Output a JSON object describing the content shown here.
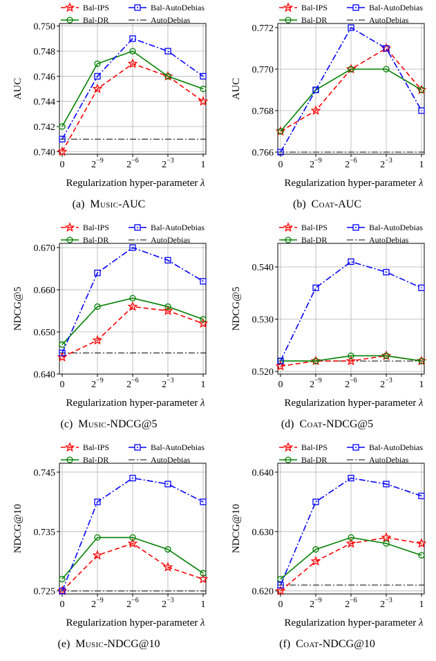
{
  "figure": {
    "captions": [
      {
        "letter": "(a)",
        "dataset": "Music",
        "metric": "-AUC"
      },
      {
        "letter": "(b)",
        "dataset": "Coat",
        "metric": "-AUC"
      },
      {
        "letter": "(c)",
        "dataset": "Music",
        "metric": "-NDCG@5"
      },
      {
        "letter": "(d)",
        "dataset": "Coat",
        "metric": "-NDCG@5"
      },
      {
        "letter": "(e)",
        "dataset": "Music",
        "metric": "-NDCG@10"
      },
      {
        "letter": "(f)",
        "dataset": "Coat",
        "metric": "-NDCG@10"
      }
    ]
  },
  "colors": {
    "bal_ips": "#ff0000",
    "bal_dr": "#008000",
    "bal_autodebias": "#0000ff",
    "autodebias": "#000000"
  },
  "chart_data": [
    {
      "type": "line",
      "xlabel": "Regularization hyper-parameter λ",
      "ylabel": "AUC",
      "categories": [
        "0",
        "2^-9",
        "2^-6",
        "2^-3",
        "1"
      ],
      "ylim": [
        0.7398,
        0.7502
      ],
      "yticks": [
        0.74,
        0.742,
        0.744,
        0.746,
        0.748,
        0.75
      ],
      "ytick_labels": [
        "0.740",
        "0.742",
        "0.744",
        "0.746",
        "0.748",
        "0.750"
      ],
      "legend": "top",
      "grid": true,
      "series": [
        {
          "name": "Bal-IPS",
          "values": [
            0.74,
            0.745,
            0.747,
            0.746,
            0.744
          ]
        },
        {
          "name": "Bal-DR",
          "values": [
            0.742,
            0.747,
            0.748,
            0.746,
            0.745
          ]
        },
        {
          "name": "Bal-AutoDebias",
          "values": [
            0.741,
            0.746,
            0.749,
            0.748,
            0.746
          ]
        },
        {
          "name": "AutoDebias",
          "values": [
            0.741,
            0.741,
            0.741,
            0.741,
            0.741
          ]
        }
      ]
    },
    {
      "type": "line",
      "xlabel": "Regularization hyper-parameter λ",
      "ylabel": "AUC",
      "categories": [
        "0",
        "2^-9",
        "2^-6",
        "2^-3",
        "1"
      ],
      "ylim": [
        0.7659,
        0.7722
      ],
      "yticks": [
        0.766,
        0.768,
        0.77,
        0.772
      ],
      "ytick_labels": [
        "0.766",
        "0.768",
        "0.770",
        "0.772"
      ],
      "legend": "top",
      "grid": true,
      "series": [
        {
          "name": "Bal-IPS",
          "values": [
            0.767,
            0.768,
            0.77,
            0.771,
            0.769
          ]
        },
        {
          "name": "Bal-DR",
          "values": [
            0.767,
            0.769,
            0.77,
            0.77,
            0.769
          ]
        },
        {
          "name": "Bal-AutoDebias",
          "values": [
            0.766,
            0.769,
            0.772,
            0.771,
            0.768
          ]
        },
        {
          "name": "AutoDebias",
          "values": [
            0.766,
            0.766,
            0.766,
            0.766,
            0.766
          ]
        }
      ]
    },
    {
      "type": "line",
      "xlabel": "Regularization hyper-parameter λ",
      "ylabel": "NDCG@5",
      "categories": [
        "0",
        "2^-9",
        "2^-6",
        "2^-3",
        "1"
      ],
      "ylim": [
        0.64,
        0.671
      ],
      "yticks": [
        0.64,
        0.65,
        0.66,
        0.67
      ],
      "ytick_labels": [
        "0.640",
        "0.650",
        "0.660",
        "0.670"
      ],
      "legend": "top",
      "grid": true,
      "series": [
        {
          "name": "Bal-IPS",
          "values": [
            0.644,
            0.648,
            0.656,
            0.655,
            0.652
          ]
        },
        {
          "name": "Bal-DR",
          "values": [
            0.647,
            0.656,
            0.658,
            0.656,
            0.653
          ]
        },
        {
          "name": "Bal-AutoDebias",
          "values": [
            0.645,
            0.664,
            0.67,
            0.667,
            0.662
          ]
        },
        {
          "name": "AutoDebias",
          "values": [
            0.645,
            0.645,
            0.645,
            0.645,
            0.645
          ]
        }
      ]
    },
    {
      "type": "line",
      "xlabel": "Regularization hyper-parameter λ",
      "ylabel": "NDCG@5",
      "categories": [
        "0",
        "2^-9",
        "2^-6",
        "2^-3",
        "1"
      ],
      "ylim": [
        0.5195,
        0.5445
      ],
      "yticks": [
        0.52,
        0.53,
        0.54
      ],
      "ytick_labels": [
        "0.520",
        "0.530",
        "0.540"
      ],
      "legend": "top",
      "grid": true,
      "series": [
        {
          "name": "Bal-IPS",
          "values": [
            0.521,
            0.522,
            0.522,
            0.523,
            0.522
          ]
        },
        {
          "name": "Bal-DR",
          "values": [
            0.522,
            0.522,
            0.523,
            0.523,
            0.522
          ]
        },
        {
          "name": "Bal-AutoDebias",
          "values": [
            0.522,
            0.536,
            0.541,
            0.539,
            0.536
          ]
        },
        {
          "name": "AutoDebias",
          "values": [
            0.522,
            0.522,
            0.522,
            0.522,
            0.522
          ]
        }
      ]
    },
    {
      "type": "line",
      "xlabel": "Regularization hyper-parameter λ",
      "ylabel": "NDCG@10",
      "categories": [
        "0",
        "2^-9",
        "2^-6",
        "2^-3",
        "1"
      ],
      "ylim": [
        0.7245,
        0.7465
      ],
      "yticks": [
        0.725,
        0.735,
        0.745
      ],
      "ytick_labels": [
        "0.725",
        "0.735",
        "0.745"
      ],
      "legend": "top",
      "grid": true,
      "series": [
        {
          "name": "Bal-IPS",
          "values": [
            0.725,
            0.731,
            0.733,
            0.729,
            0.727
          ]
        },
        {
          "name": "Bal-DR",
          "values": [
            0.727,
            0.734,
            0.734,
            0.732,
            0.728
          ]
        },
        {
          "name": "Bal-AutoDebias",
          "values": [
            0.725,
            0.74,
            0.744,
            0.743,
            0.74
          ]
        },
        {
          "name": "AutoDebias",
          "values": [
            0.725,
            0.725,
            0.725,
            0.725,
            0.725
          ]
        }
      ]
    },
    {
      "type": "line",
      "xlabel": "Regularization hyper-parameter λ",
      "ylabel": "NDCG@10",
      "categories": [
        "0",
        "2^-9",
        "2^-6",
        "2^-3",
        "1"
      ],
      "ylim": [
        0.6195,
        0.6415
      ],
      "yticks": [
        0.62,
        0.63,
        0.64
      ],
      "ytick_labels": [
        "0.620",
        "0.630",
        "0.640"
      ],
      "legend": "top",
      "grid": true,
      "series": [
        {
          "name": "Bal-IPS",
          "values": [
            0.62,
            0.625,
            0.628,
            0.629,
            0.628
          ]
        },
        {
          "name": "Bal-DR",
          "values": [
            0.622,
            0.627,
            0.629,
            0.628,
            0.626
          ]
        },
        {
          "name": "Bal-AutoDebias",
          "values": [
            0.621,
            0.635,
            0.639,
            0.638,
            0.636
          ]
        },
        {
          "name": "AutoDebias",
          "values": [
            0.621,
            0.621,
            0.621,
            0.621,
            0.621
          ]
        }
      ]
    }
  ]
}
